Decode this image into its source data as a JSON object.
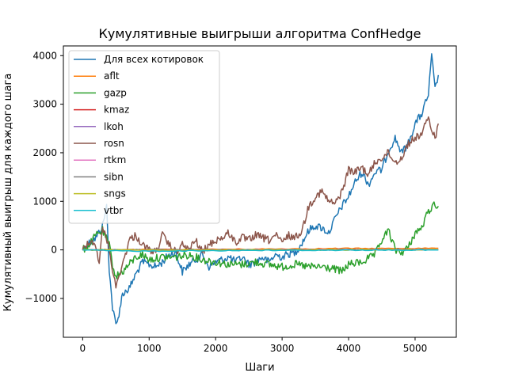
{
  "chart_data": {
    "type": "line",
    "title": "Кумулятивные выигрыши алгоритма ConfHedge",
    "xlabel": "Шаги",
    "ylabel": "Кумулятивный выигрыш для каждого шага",
    "xlim": [
      -290,
      5620
    ],
    "ylim": [
      -1800,
      4200
    ],
    "xticks": [
      0,
      1000,
      2000,
      3000,
      4000,
      5000
    ],
    "xtick_labels": [
      "0",
      "1000",
      "2000",
      "3000",
      "4000",
      "5000"
    ],
    "yticks": [
      -1000,
      0,
      1000,
      2000,
      3000,
      4000
    ],
    "ytick_labels": [
      "−1000",
      "0",
      "1000",
      "2000",
      "3000",
      "4000"
    ],
    "grid": false,
    "legend_position": "top-left",
    "noise_note_omitted": true,
    "series": [
      {
        "name": "Для всех котировок",
        "color": "#1f77b4",
        "x": [
          0,
          100,
          200,
          300,
          360,
          400,
          450,
          500,
          520,
          600,
          700,
          800,
          900,
          1000,
          1100,
          1200,
          1300,
          1400,
          1500,
          1600,
          1700,
          1800,
          1900,
          2000,
          2100,
          2200,
          2300,
          2400,
          2500,
          2600,
          2700,
          2800,
          2900,
          3000,
          3100,
          3200,
          3300,
          3400,
          3500,
          3600,
          3700,
          3800,
          3900,
          4000,
          4100,
          4200,
          4300,
          4400,
          4500,
          4600,
          4700,
          4800,
          4900,
          5000,
          5100,
          5200,
          5250,
          5300,
          5350
        ],
        "y": [
          0,
          150,
          250,
          500,
          900,
          -400,
          -1200,
          -1550,
          -1500,
          -900,
          -800,
          -500,
          -250,
          -300,
          -350,
          -250,
          -100,
          -50,
          -450,
          -300,
          -200,
          -100,
          -350,
          -250,
          -200,
          -150,
          -250,
          -150,
          -300,
          -250,
          -150,
          -250,
          -100,
          -150,
          -80,
          -50,
          150,
          400,
          500,
          450,
          350,
          650,
          900,
          1100,
          1400,
          1600,
          1350,
          1600,
          1650,
          2050,
          2300,
          2000,
          2200,
          2600,
          2800,
          3200,
          4000,
          3300,
          3600
        ]
      },
      {
        "name": "aflt",
        "color": "#ff7f0e",
        "x": [
          0,
          500,
          1000,
          1500,
          2000,
          2500,
          3000,
          3500,
          4000,
          4500,
          5000,
          5350
        ],
        "y": [
          0,
          -5,
          5,
          8,
          10,
          15,
          20,
          25,
          30,
          28,
          32,
          35
        ]
      },
      {
        "name": "gazp",
        "color": "#2ca02c",
        "x": [
          0,
          100,
          200,
          300,
          400,
          450,
          500,
          600,
          700,
          800,
          900,
          1000,
          1200,
          1400,
          1600,
          1800,
          2000,
          2200,
          2400,
          2600,
          2800,
          3000,
          3200,
          3400,
          3600,
          3800,
          3900,
          4000,
          4200,
          4400,
          4500,
          4600,
          4700,
          4800,
          4900,
          5000,
          5100,
          5200,
          5300,
          5350
        ],
        "y": [
          0,
          100,
          300,
          400,
          100,
          -300,
          -550,
          -450,
          -300,
          -150,
          -100,
          -200,
          -150,
          -150,
          -100,
          -200,
          -250,
          -300,
          -300,
          -250,
          -300,
          -350,
          -300,
          -350,
          -350,
          -400,
          -450,
          -300,
          -250,
          -100,
          200,
          400,
          0,
          -50,
          50,
          350,
          450,
          800,
          950,
          900
        ]
      },
      {
        "name": "kmaz",
        "color": "#d62728",
        "x": [
          0,
          1000,
          2000,
          3000,
          4000,
          5000,
          5350
        ],
        "y": [
          0,
          2,
          3,
          4,
          5,
          6,
          6
        ]
      },
      {
        "name": "lkoh",
        "color": "#9467bd",
        "x": [
          0,
          1000,
          2000,
          3000,
          4000,
          5000,
          5350
        ],
        "y": [
          0,
          -2,
          0,
          2,
          3,
          4,
          5
        ]
      },
      {
        "name": "rosn",
        "color": "#8c564b",
        "x": [
          0,
          100,
          200,
          250,
          300,
          350,
          400,
          450,
          500,
          550,
          600,
          700,
          800,
          900,
          1000,
          1100,
          1200,
          1300,
          1400,
          1500,
          1600,
          1700,
          1800,
          1900,
          2000,
          2100,
          2200,
          2300,
          2400,
          2500,
          2600,
          2700,
          2800,
          2900,
          3000,
          3100,
          3200,
          3300,
          3400,
          3500,
          3600,
          3700,
          3800,
          3900,
          4000,
          4100,
          4200,
          4300,
          4400,
          4500,
          4600,
          4700,
          4800,
          4900,
          5000,
          5100,
          5200,
          5300,
          5350
        ],
        "y": [
          0,
          200,
          100,
          -300,
          450,
          300,
          0,
          -400,
          -800,
          -500,
          -300,
          200,
          300,
          100,
          0,
          -50,
          300,
          100,
          -50,
          100,
          0,
          200,
          -50,
          100,
          200,
          250,
          350,
          150,
          250,
          200,
          300,
          250,
          200,
          300,
          150,
          300,
          250,
          400,
          900,
          1100,
          1200,
          1000,
          950,
          1200,
          1650,
          1600,
          1700,
          1550,
          1800,
          1900,
          2000,
          1800,
          1900,
          2200,
          2300,
          2400,
          2700,
          2300,
          2600
        ]
      },
      {
        "name": "rtkm",
        "color": "#e377c2",
        "x": [
          0,
          1000,
          2000,
          3000,
          4000,
          5000,
          5350
        ],
        "y": [
          0,
          -3,
          -2,
          0,
          2,
          3,
          4
        ]
      },
      {
        "name": "sibn",
        "color": "#7f7f7f",
        "x": [
          0,
          1000,
          2000,
          3000,
          4000,
          5000,
          5350
        ],
        "y": [
          0,
          1,
          1,
          2,
          2,
          3,
          3
        ]
      },
      {
        "name": "sngs",
        "color": "#bcbd22",
        "x": [
          0,
          1000,
          2000,
          3000,
          4000,
          5000,
          5350
        ],
        "y": [
          0,
          -1,
          -2,
          -1,
          0,
          1,
          2
        ]
      },
      {
        "name": "vtbr",
        "color": "#17becf",
        "x": [
          0,
          100,
          200,
          300,
          400,
          500,
          1000,
          1500,
          2000,
          2500,
          3000,
          3500,
          4000,
          4500,
          5000,
          5350
        ],
        "y": [
          0,
          -5,
          -8,
          -10,
          -15,
          -20,
          -25,
          -20,
          -15,
          -10,
          -10,
          -8,
          -5,
          -5,
          -3,
          -2
        ]
      }
    ]
  }
}
